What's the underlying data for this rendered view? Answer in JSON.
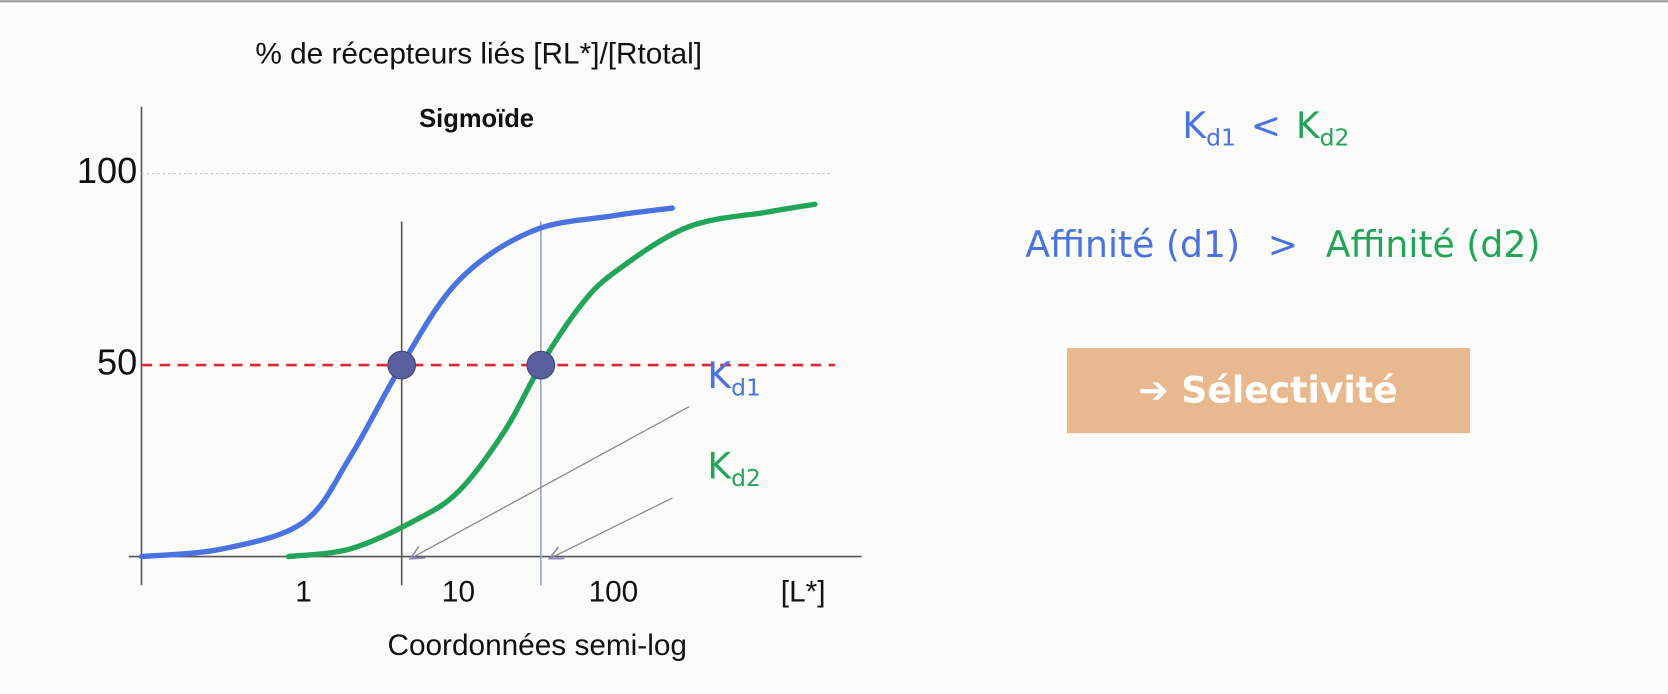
{
  "chart_data": {
    "type": "line",
    "title": "Sigmoïde",
    "y_label": "% de récepteurs liés [RL*]/[Rtotal]",
    "x_label": "Coordonnées semi-log",
    "x_unit_label": "[L*]",
    "x_scale": "log",
    "xlim": [
      0.09,
      4000
    ],
    "xticks": [
      1,
      10,
      100
    ],
    "ylim": [
      -7.5,
      117.5
    ],
    "yticks": [
      50,
      100
    ],
    "hline": 50,
    "hline_color": "#d9283a",
    "series": [
      {
        "color": "#4a72e0",
        "x": [
          0.09,
          0.3,
          1,
          2,
          4.3,
          10,
          30,
          100,
          240
        ],
        "values": [
          0,
          2,
          9,
          26,
          50,
          72,
          85,
          89,
          91
        ]
      },
      {
        "color": "#22a55a",
        "x": [
          0.8,
          2,
          5,
          10,
          20,
          34,
          60,
          100,
          300,
          1000,
          2000
        ],
        "values": [
          0,
          2,
          9,
          17,
          33,
          50,
          65,
          74,
          86,
          90,
          92
        ]
      }
    ],
    "kd_points": [
      {
        "x": 4.3,
        "y": 50
      },
      {
        "x": 34,
        "y": 50
      }
    ],
    "kd_labels": [
      {
        "main": "K",
        "sub": "d1",
        "color": "#4a72e0"
      },
      {
        "main": "K",
        "sub": "d2",
        "color": "#22a55a"
      }
    ]
  },
  "side_panel": {
    "relation": {
      "left": {
        "main": "K",
        "sub": "d1"
      },
      "op": "<",
      "right": {
        "main": "K",
        "sub": "d2"
      }
    },
    "affinity": {
      "left": "Affinité (d1)",
      "op": ">",
      "right": "Affinité (d2)"
    },
    "button": "➔ Sélectivité"
  }
}
